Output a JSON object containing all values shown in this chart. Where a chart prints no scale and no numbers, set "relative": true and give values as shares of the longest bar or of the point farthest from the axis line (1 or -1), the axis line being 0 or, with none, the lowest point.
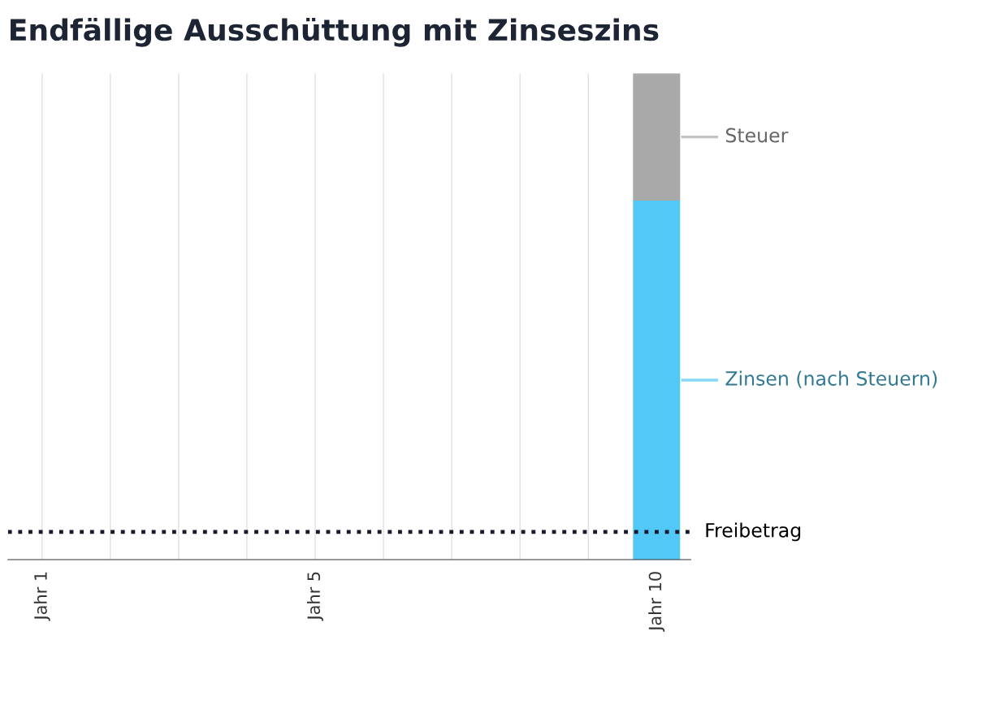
{
  "chart_data": {
    "type": "bar",
    "title": "Endfällige Ausschüttung mit Zinseszins",
    "categories": [
      "Jahr 1",
      null,
      null,
      null,
      "Jahr 5",
      null,
      null,
      null,
      null,
      "Jahr 10"
    ],
    "stacked": true,
    "relative": true,
    "grid": "x",
    "legend": "right",
    "series": [
      {
        "name": "Zinsen (nach Steuern)",
        "color": "#51c8f5",
        "values": [
          null,
          null,
          null,
          null,
          null,
          null,
          null,
          null,
          null,
          0.738
        ]
      },
      {
        "name": "Steuer",
        "color": "#a9a9a9",
        "values": [
          null,
          null,
          null,
          null,
          null,
          null,
          null,
          null,
          null,
          0.262
        ]
      }
    ],
    "ref_lines": [
      {
        "axis": "y",
        "value": 0.057,
        "label": "Freibetrag",
        "color": "#1a1a2e",
        "line_style": "dotted"
      }
    ]
  }
}
